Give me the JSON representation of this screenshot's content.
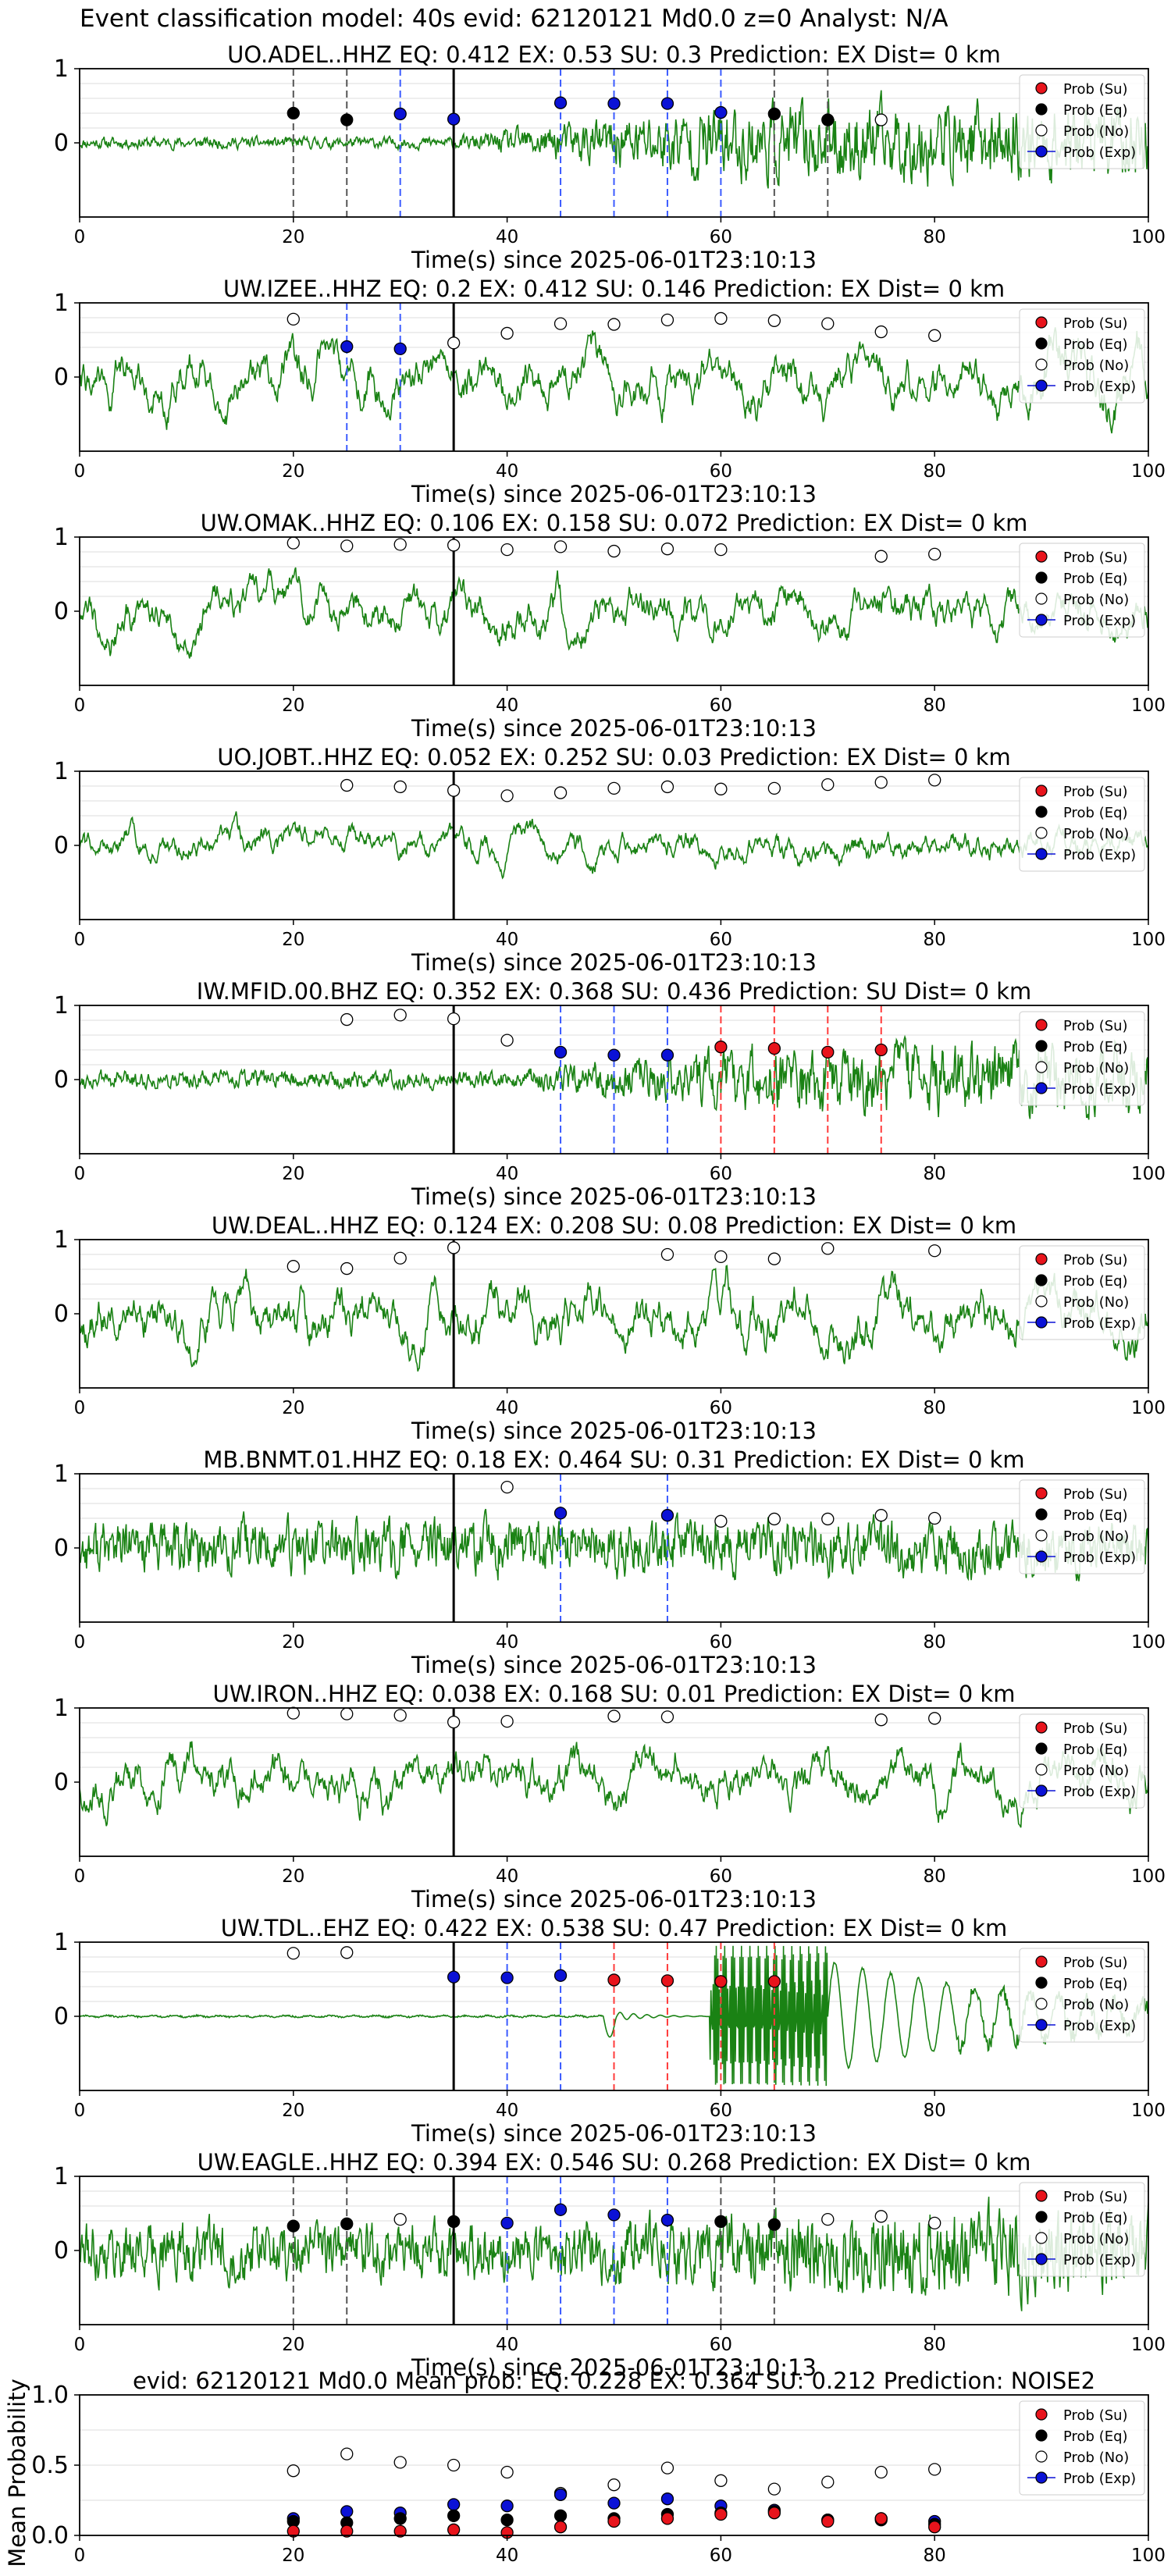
{
  "figure_title": "Event classification model: 40s evid: 62120121 Md0.0 z=0 Analyst: N/A",
  "xlabel": "Time(s) since 2025-06-01T23:10:13",
  "legend": [
    "Prob (Su)",
    "Prob (Eq)",
    "Prob (No)",
    "Prob (Exp)"
  ],
  "colors": {
    "Su": "#e8141c",
    "Eq": "#000000",
    "No": "#ffffff",
    "Exp": "#0b12d6",
    "waveform": "#1a8214",
    "line_Eq": "#555555",
    "line_Exp": "#3b5bff",
    "line_Su": "#ff3b3b",
    "grid": "#dddddd"
  },
  "chart_data": [
    {
      "type": "line",
      "title": "UO.ADEL..HHZ   EQ: 0.412  EX: 0.53  SU: 0.3   Prediction: EX    Dist= 0 km",
      "xlabel": "Time(s) since 2025-06-01T23:10:13",
      "xlim": [
        0,
        100
      ],
      "ylim": [
        -1,
        1
      ],
      "xticks": [
        "0",
        "20",
        "40",
        "60",
        "80",
        "100"
      ],
      "yticks": [
        "1",
        "0"
      ],
      "onset_x": 35,
      "waveform": {
        "seed": 11,
        "style": "noisy",
        "base_amp": 0.08,
        "growth": 0.45,
        "growth_start": 35
      },
      "series": [
        {
          "name": "Prob (Eq)",
          "x": [
            20,
            25,
            65,
            70
          ],
          "y": [
            0.4,
            0.31,
            0.39,
            0.31
          ]
        },
        {
          "name": "Prob (Exp)",
          "x": [
            30,
            35,
            45,
            50,
            55,
            60
          ],
          "y": [
            0.39,
            0.32,
            0.54,
            0.53,
            0.53,
            0.41
          ]
        },
        {
          "name": "Prob (No)",
          "x": [
            75
          ],
          "y": [
            0.31
          ]
        }
      ]
    },
    {
      "type": "line",
      "title": "UW.IZEE..HHZ   EQ: 0.2  EX: 0.412  SU: 0.146   Prediction: EX    Dist= 0 km",
      "xlabel": "Time(s) since 2025-06-01T23:10:13",
      "xlim": [
        0,
        100
      ],
      "ylim": [
        -1,
        1
      ],
      "xticks": [
        "0",
        "20",
        "40",
        "60",
        "80",
        "100"
      ],
      "yticks": [
        "1",
        "0"
      ],
      "onset_x": 35,
      "waveform": {
        "seed": 22,
        "style": "smooth",
        "base_amp": 0.45,
        "growth": 0.1,
        "growth_start": 90
      },
      "series": [
        {
          "name": "Prob (No)",
          "x": [
            20,
            35,
            40,
            45,
            50,
            55,
            60,
            65,
            70,
            75,
            80
          ],
          "y": [
            0.78,
            0.46,
            0.59,
            0.72,
            0.71,
            0.77,
            0.79,
            0.76,
            0.72,
            0.61,
            0.56
          ]
        },
        {
          "name": "Prob (Exp)",
          "x": [
            25,
            30
          ],
          "y": [
            0.41,
            0.38
          ]
        }
      ]
    },
    {
      "type": "line",
      "title": "UW.OMAK..HHZ   EQ: 0.106  EX: 0.158  SU: 0.072   Prediction: EX    Dist= 0 km",
      "xlabel": "Time(s) since 2025-06-01T23:10:13",
      "xlim": [
        0,
        100
      ],
      "ylim": [
        -1,
        1
      ],
      "xticks": [
        "0",
        "20",
        "40",
        "60",
        "80",
        "100"
      ],
      "yticks": [
        "1",
        "0"
      ],
      "onset_x": 35,
      "waveform": {
        "seed": 33,
        "style": "smooth",
        "base_amp": 0.4,
        "growth": 0,
        "growth_start": 100
      },
      "series": [
        {
          "name": "Prob (No)",
          "x": [
            20,
            25,
            30,
            35,
            40,
            45,
            50,
            55,
            60,
            75,
            80
          ],
          "y": [
            0.92,
            0.88,
            0.9,
            0.89,
            0.83,
            0.87,
            0.81,
            0.84,
            0.83,
            0.74,
            0.77
          ]
        }
      ]
    },
    {
      "type": "line",
      "title": "UO.JOBT..HHZ   EQ: 0.052  EX: 0.252  SU: 0.03   Prediction: EX    Dist= 0 km",
      "xlabel": "Time(s) since 2025-06-01T23:10:13",
      "xlim": [
        0,
        100
      ],
      "ylim": [
        -1,
        1
      ],
      "xticks": [
        "0",
        "20",
        "40",
        "60",
        "80",
        "100"
      ],
      "yticks": [
        "1",
        "0"
      ],
      "onset_x": 35,
      "waveform": {
        "seed": 44,
        "style": "smooth",
        "base_amp": 0.28,
        "growth": 0,
        "growth_start": 100
      },
      "series": [
        {
          "name": "Prob (No)",
          "x": [
            25,
            30,
            35,
            40,
            45,
            50,
            55,
            60,
            65,
            70,
            75,
            80
          ],
          "y": [
            0.81,
            0.79,
            0.74,
            0.67,
            0.71,
            0.77,
            0.79,
            0.76,
            0.77,
            0.82,
            0.85,
            0.88
          ]
        }
      ]
    },
    {
      "type": "line",
      "title": "IW.MFID.00.BHZ   EQ: 0.352  EX: 0.368  SU: 0.436   Prediction: SU    Dist= 0 km",
      "xlabel": "Time(s) since 2025-06-01T23:10:13",
      "xlim": [
        0,
        100
      ],
      "ylim": [
        -1,
        1
      ],
      "xticks": [
        "0",
        "20",
        "40",
        "60",
        "80",
        "100"
      ],
      "yticks": [
        "1",
        "0"
      ],
      "onset_x": 35,
      "waveform": {
        "seed": 55,
        "style": "noisy",
        "base_amp": 0.12,
        "growth": 0.35,
        "growth_start": 40
      },
      "series": [
        {
          "name": "Prob (No)",
          "x": [
            25,
            30,
            35,
            40
          ],
          "y": [
            0.81,
            0.87,
            0.82,
            0.53
          ]
        },
        {
          "name": "Prob (Exp)",
          "x": [
            45,
            50,
            55
          ],
          "y": [
            0.37,
            0.33,
            0.33
          ]
        },
        {
          "name": "Prob (Su)",
          "x": [
            60,
            65,
            70,
            75
          ],
          "y": [
            0.44,
            0.42,
            0.37,
            0.4
          ]
        }
      ]
    },
    {
      "type": "line",
      "title": "UW.DEAL..HHZ   EQ: 0.124  EX: 0.208  SU: 0.08   Prediction: EX    Dist= 0 km",
      "xlabel": "Time(s) since 2025-06-01T23:10:13",
      "xlim": [
        0,
        100
      ],
      "ylim": [
        -1,
        1
      ],
      "xticks": [
        "0",
        "20",
        "40",
        "60",
        "80",
        "100"
      ],
      "yticks": [
        "1",
        "0"
      ],
      "onset_x": 35,
      "waveform": {
        "seed": 66,
        "style": "smooth",
        "base_amp": 0.5,
        "growth": 0,
        "growth_start": 100
      },
      "series": [
        {
          "name": "Prob (No)",
          "x": [
            20,
            25,
            30,
            35,
            55,
            60,
            65,
            70,
            80
          ],
          "y": [
            0.64,
            0.61,
            0.75,
            0.89,
            0.8,
            0.77,
            0.74,
            0.88,
            0.85
          ]
        }
      ]
    },
    {
      "type": "line",
      "title": "MB.BNMT.01.HHZ   EQ: 0.18  EX: 0.464  SU: 0.31   Prediction: EX    Dist= 0 km",
      "xlabel": "Time(s) since 2025-06-01T23:10:13",
      "xlim": [
        0,
        100
      ],
      "ylim": [
        -1,
        1
      ],
      "xticks": [
        "0",
        "20",
        "40",
        "60",
        "80",
        "100"
      ],
      "yticks": [
        "1",
        "0"
      ],
      "onset_x": 35,
      "waveform": {
        "seed": 77,
        "style": "noisy",
        "base_amp": 0.38,
        "growth": 0,
        "growth_start": 100
      },
      "series": [
        {
          "name": "Prob (No)",
          "x": [
            40,
            60,
            65,
            70,
            75,
            80
          ],
          "y": [
            0.82,
            0.36,
            0.39,
            0.39,
            0.44,
            0.4
          ]
        },
        {
          "name": "Prob (Exp)",
          "x": [
            45,
            55
          ],
          "y": [
            0.47,
            0.44
          ]
        }
      ]
    },
    {
      "type": "line",
      "title": "UW.IRON..HHZ   EQ: 0.038  EX: 0.168  SU: 0.01   Prediction: EX    Dist= 0 km",
      "xlabel": "Time(s) since 2025-06-01T23:10:13",
      "xlim": [
        0,
        100
      ],
      "ylim": [
        -1,
        1
      ],
      "xticks": [
        "0",
        "20",
        "40",
        "60",
        "80",
        "100"
      ],
      "yticks": [
        "1",
        "0"
      ],
      "onset_x": 35,
      "waveform": {
        "seed": 88,
        "style": "smooth",
        "base_amp": 0.45,
        "growth": 0,
        "growth_start": 100
      },
      "series": [
        {
          "name": "Prob (No)",
          "x": [
            20,
            25,
            30,
            35,
            40,
            50,
            55,
            75,
            80
          ],
          "y": [
            0.93,
            0.92,
            0.9,
            0.81,
            0.82,
            0.89,
            0.88,
            0.84,
            0.86
          ]
        }
      ]
    },
    {
      "type": "line",
      "title": "UW.TDL..EHZ   EQ: 0.422  EX: 0.538  SU: 0.47   Prediction: EX    Dist= 0 km",
      "xlabel": "Time(s) since 2025-06-01T23:10:13",
      "xlim": [
        0,
        100
      ],
      "ylim": [
        -1,
        1
      ],
      "xticks": [
        "0",
        "20",
        "40",
        "60",
        "80",
        "100"
      ],
      "yticks": [
        "1",
        "0"
      ],
      "onset_x": 35,
      "waveform": {
        "seed": 99,
        "style": "tdl",
        "base_amp": 0.02,
        "growth": 0,
        "growth_start": 100
      },
      "series": [
        {
          "name": "Prob (No)",
          "x": [
            20,
            25
          ],
          "y": [
            0.85,
            0.86
          ]
        },
        {
          "name": "Prob (Exp)",
          "x": [
            35,
            40,
            45
          ],
          "y": [
            0.53,
            0.52,
            0.55
          ]
        },
        {
          "name": "Prob (Su)",
          "x": [
            50,
            55,
            60,
            65
          ],
          "y": [
            0.49,
            0.48,
            0.47,
            0.47
          ]
        }
      ]
    },
    {
      "type": "line",
      "title": "UW.EAGLE..HHZ   EQ: 0.394  EX: 0.546  SU: 0.268   Prediction: EX    Dist= 0 km",
      "xlabel": "Time(s) since 2025-06-01T23:10:13",
      "xlim": [
        0,
        100
      ],
      "ylim": [
        -1,
        1
      ],
      "xticks": [
        "0",
        "20",
        "40",
        "60",
        "80",
        "100"
      ],
      "yticks": [
        "1",
        "0"
      ],
      "onset_x": 35,
      "waveform": {
        "seed": 111,
        "style": "noisy",
        "base_amp": 0.4,
        "growth": 0.2,
        "growth_start": 45
      },
      "series": [
        {
          "name": "Prob (Eq)",
          "x": [
            20,
            25,
            35,
            60,
            65
          ],
          "y": [
            0.33,
            0.36,
            0.39,
            0.39,
            0.35
          ]
        },
        {
          "name": "Prob (No)",
          "x": [
            30,
            70,
            75,
            80
          ],
          "y": [
            0.42,
            0.42,
            0.46,
            0.37
          ]
        },
        {
          "name": "Prob (Exp)",
          "x": [
            40,
            45,
            50,
            55
          ],
          "y": [
            0.37,
            0.55,
            0.48,
            0.41
          ]
        }
      ]
    },
    {
      "type": "scatter",
      "title": "evid: 62120121  Md0.0   Mean prob:   EQ: 0.228  EX: 0.364  SU: 0.212   Prediction: NOISE2",
      "xlabel": "",
      "ylabel": "Mean Probability",
      "xlim": [
        0,
        100
      ],
      "ylim": [
        0,
        1
      ],
      "xticks": [
        "0",
        "20",
        "40",
        "60",
        "80",
        "100"
      ],
      "yticks": [
        "1.0",
        "0.5",
        "0.0"
      ],
      "series": [
        {
          "name": "Prob (No)",
          "x": [
            20,
            25,
            30,
            35,
            40,
            45,
            50,
            55,
            60,
            65,
            70,
            75,
            80
          ],
          "y": [
            0.46,
            0.58,
            0.52,
            0.5,
            0.45,
            0.3,
            0.36,
            0.48,
            0.39,
            0.33,
            0.38,
            0.45,
            0.47
          ]
        },
        {
          "name": "Prob (Exp)",
          "x": [
            20,
            25,
            30,
            35,
            40,
            45,
            50,
            55,
            60,
            65,
            70,
            75,
            80
          ],
          "y": [
            0.12,
            0.17,
            0.16,
            0.22,
            0.21,
            0.29,
            0.23,
            0.26,
            0.21,
            0.18,
            0.11,
            0.12,
            0.1
          ]
        },
        {
          "name": "Prob (Eq)",
          "x": [
            20,
            25,
            30,
            35,
            40,
            45,
            50,
            55,
            60,
            65,
            70,
            75,
            80
          ],
          "y": [
            0.1,
            0.09,
            0.12,
            0.14,
            0.11,
            0.14,
            0.12,
            0.15,
            0.16,
            0.17,
            0.11,
            0.11,
            0.08
          ]
        },
        {
          "name": "Prob (Su)",
          "x": [
            20,
            25,
            30,
            35,
            40,
            45,
            50,
            55,
            60,
            65,
            70,
            75,
            80
          ],
          "y": [
            0.03,
            0.03,
            0.03,
            0.04,
            0.02,
            0.06,
            0.1,
            0.12,
            0.15,
            0.16,
            0.1,
            0.12,
            0.06
          ]
        }
      ]
    }
  ]
}
